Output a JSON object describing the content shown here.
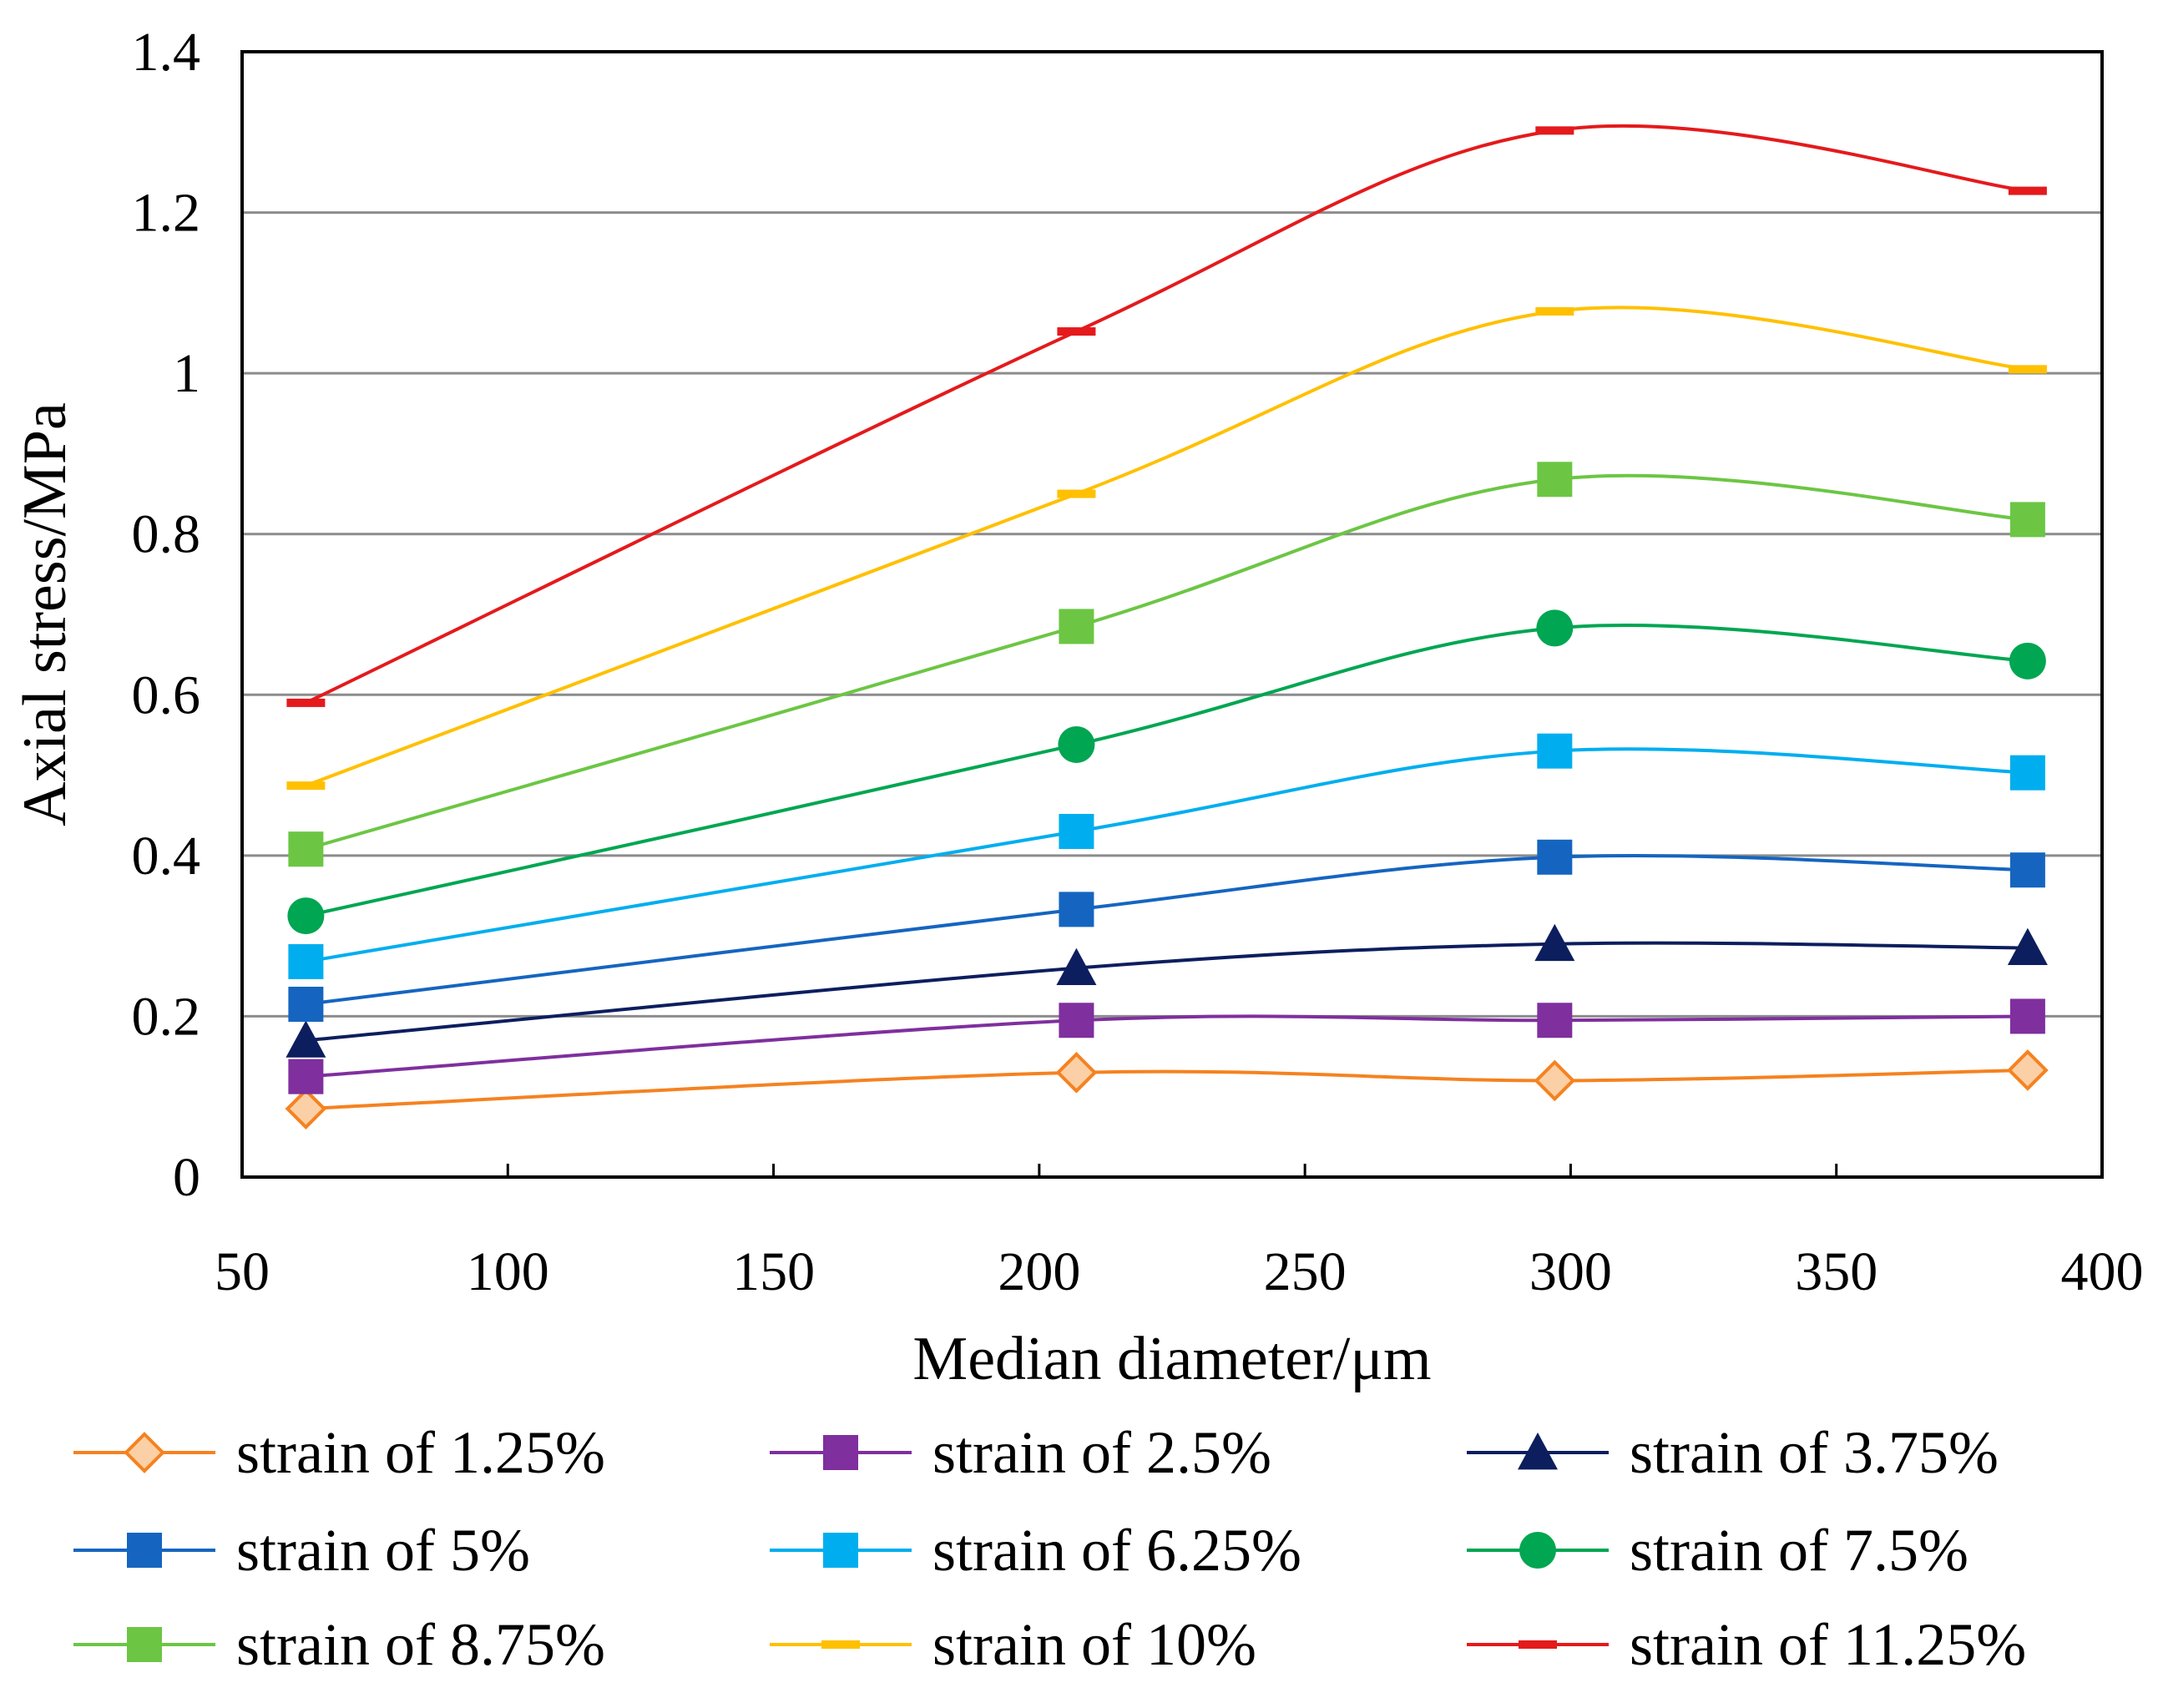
{
  "chart_data": {
    "type": "line",
    "xlabel": "Median diameter/μm",
    "ylabel": "Axial stress/MPa",
    "xlim": [
      50,
      400
    ],
    "ylim": [
      0,
      1.4
    ],
    "x_ticks": [
      "50",
      "100",
      "150",
      "200",
      "250",
      "300",
      "350",
      "400"
    ],
    "y_ticks": [
      "0",
      "0.2",
      "0.4",
      "0.6",
      "0.8",
      "1",
      "1.2",
      "1.4"
    ],
    "grid": "horizontal",
    "legend_position": "bottom",
    "x": [
      62,
      207,
      297,
      386
    ],
    "series": [
      {
        "name": "strain of 1.25%",
        "values": [
          0.085,
          0.13,
          0.12,
          0.133
        ],
        "color": "#F58220",
        "marker": "diamond-open"
      },
      {
        "name": "strain of 2.5%",
        "values": [
          0.125,
          0.195,
          0.195,
          0.2
        ],
        "color": "#7F2F9E",
        "marker": "square"
      },
      {
        "name": "strain of 3.75%",
        "values": [
          0.17,
          0.26,
          0.29,
          0.285
        ],
        "color": "#0D1E5E",
        "marker": "triangle"
      },
      {
        "name": "strain of 5%",
        "values": [
          0.215,
          0.333,
          0.398,
          0.382
        ],
        "color": "#1565C0",
        "marker": "square"
      },
      {
        "name": "strain of 6.25%",
        "values": [
          0.268,
          0.43,
          0.53,
          0.503
        ],
        "color": "#00AEEF",
        "marker": "square"
      },
      {
        "name": "strain of 7.5%",
        "values": [
          0.325,
          0.538,
          0.683,
          0.642
        ],
        "color": "#00A651",
        "marker": "circle"
      },
      {
        "name": "strain of 8.75%",
        "values": [
          0.408,
          0.685,
          0.868,
          0.818
        ],
        "color": "#6CC644",
        "marker": "square"
      },
      {
        "name": "strain of 10%",
        "values": [
          0.487,
          0.85,
          1.077,
          1.005
        ],
        "color": "#FFC000",
        "marker": "dash"
      },
      {
        "name": "strain of 11.25%",
        "values": [
          0.59,
          1.052,
          1.302,
          1.227
        ],
        "color": "#E41A1C",
        "marker": "dash"
      }
    ]
  }
}
